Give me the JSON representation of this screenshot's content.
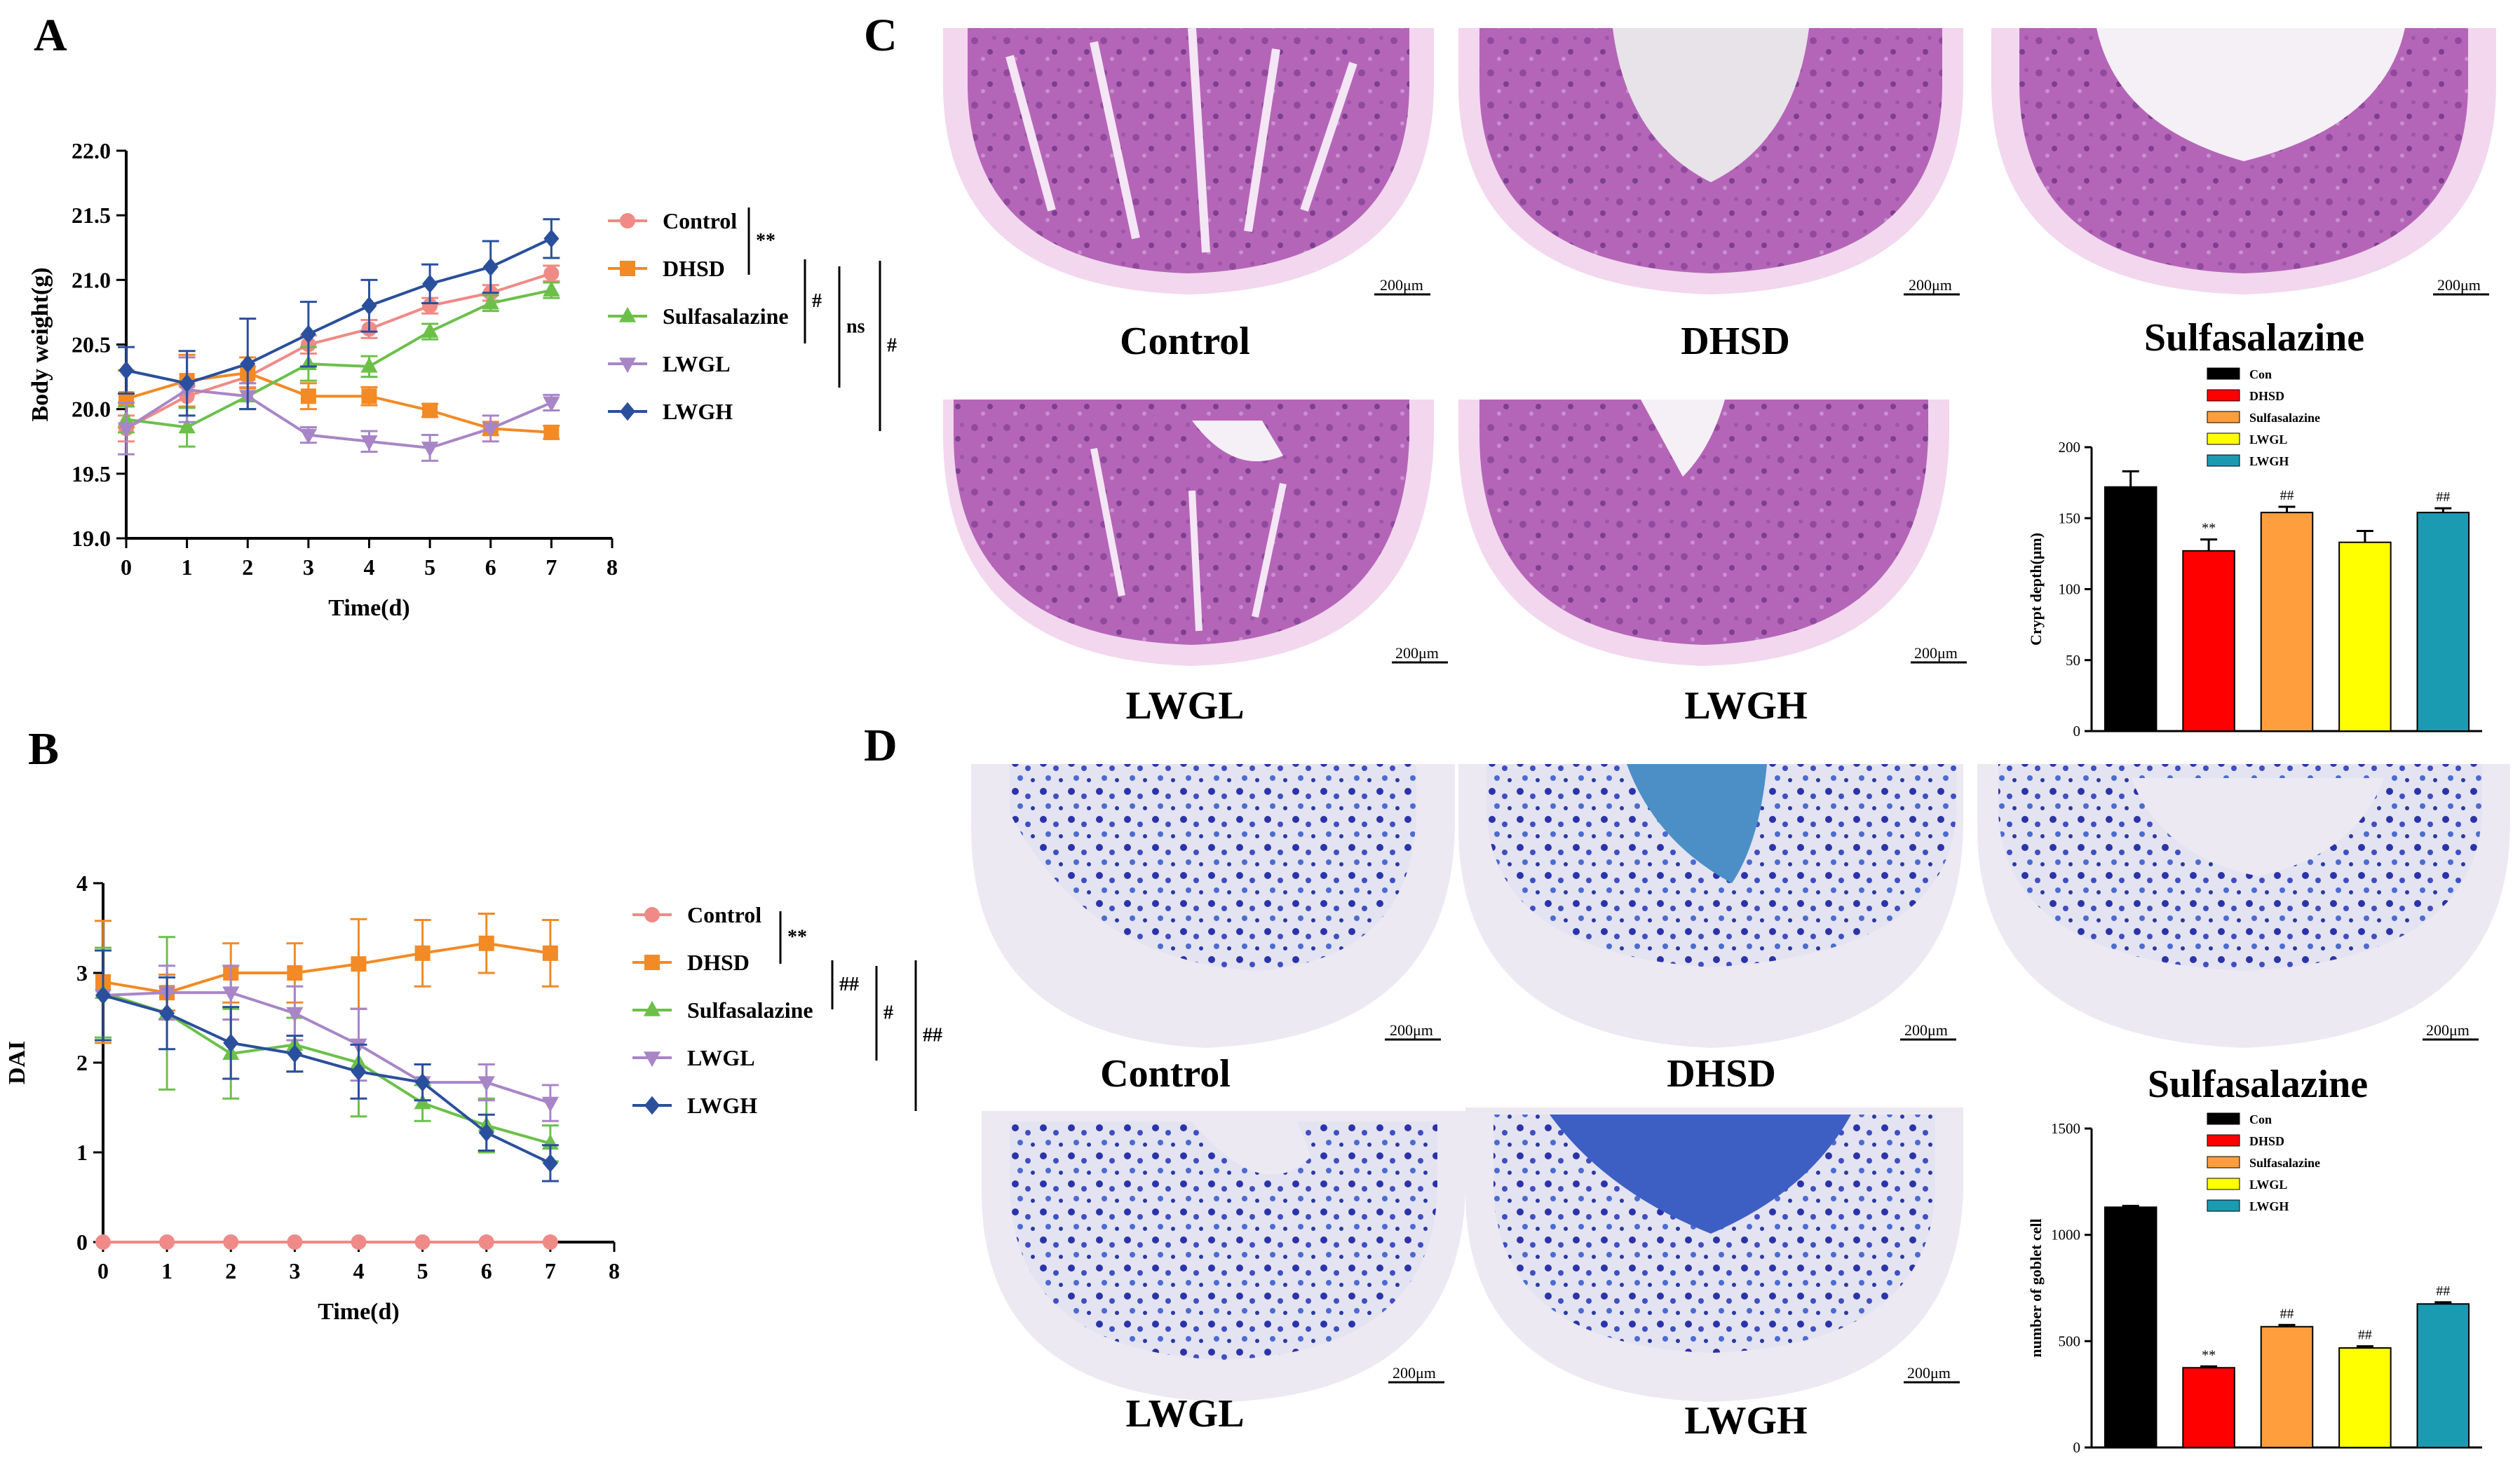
{
  "panels": {
    "A": {
      "letter": "A"
    },
    "B": {
      "letter": "B"
    },
    "C": {
      "letter": "C"
    },
    "D": {
      "letter": "D"
    }
  },
  "colors": {
    "control": "#ef8a86",
    "dhsd": "#f28a25",
    "sulfasalazine": "#6cc04a",
    "lwgl": "#a885c7",
    "lwgh": "#2a4f9c",
    "bar_con": "#000000",
    "bar_dhsd": "#ff0000",
    "bar_sulfa": "#ff9e3d",
    "bar_lwgl": "#ffff00",
    "bar_lwgh": "#1a9bb2",
    "he_tissue": "#b25bb5",
    "ab_tissue": "#3a5ac8"
  },
  "chart_data": [
    {
      "id": "A",
      "type": "line",
      "xlabel": "Time(d)",
      "ylabel": "Body weight(g)",
      "xlim": [
        0,
        8
      ],
      "ylim": [
        19.0,
        22.0
      ],
      "xticks": [
        "0",
        "1",
        "2",
        "3",
        "4",
        "5",
        "6",
        "7",
        "8"
      ],
      "yticks": [
        "19.0",
        "19.5",
        "20.0",
        "20.5",
        "21.0",
        "21.5",
        "22.0"
      ],
      "x": [
        0,
        1,
        2,
        3,
        4,
        5,
        6,
        7
      ],
      "series": [
        {
          "name": "Control",
          "marker": "circle",
          "values": [
            19.85,
            20.1,
            20.25,
            20.5,
            20.62,
            20.8,
            20.9,
            21.05
          ],
          "errors": [
            0.1,
            0.08,
            0.08,
            0.07,
            0.07,
            0.06,
            0.06,
            0.06
          ]
        },
        {
          "name": "DHSD",
          "marker": "square",
          "values": [
            20.08,
            20.22,
            20.28,
            20.1,
            20.1,
            19.99,
            19.85,
            19.82
          ],
          "errors": [
            0.22,
            0.2,
            0.12,
            0.1,
            0.07,
            0.05,
            0.05,
            0.05
          ]
        },
        {
          "name": "Sulfasalazine",
          "marker": "triangle-up",
          "values": [
            19.92,
            19.86,
            20.1,
            20.35,
            20.33,
            20.6,
            20.82,
            20.92
          ],
          "errors": [
            0.1,
            0.15,
            0.1,
            0.13,
            0.08,
            0.06,
            0.06,
            0.06
          ]
        },
        {
          "name": "LWGL",
          "marker": "triangle-down",
          "values": [
            19.85,
            20.15,
            20.1,
            19.8,
            19.75,
            19.7,
            19.85,
            20.05
          ],
          "errors": [
            0.2,
            0.25,
            0.1,
            0.06,
            0.08,
            0.1,
            0.1,
            0.06
          ]
        },
        {
          "name": "LWGH",
          "marker": "diamond",
          "values": [
            20.3,
            20.2,
            20.35,
            20.58,
            20.8,
            20.97,
            21.1,
            21.32
          ],
          "errors": [
            0.18,
            0.25,
            0.35,
            0.25,
            0.2,
            0.15,
            0.2,
            0.15
          ]
        }
      ],
      "significance": [
        "**",
        "#",
        "ns",
        "#"
      ]
    },
    {
      "id": "B",
      "type": "line",
      "xlabel": "Time(d)",
      "ylabel": "DAI",
      "xlim": [
        0,
        8
      ],
      "ylim": [
        0,
        4
      ],
      "xticks": [
        "0",
        "1",
        "2",
        "3",
        "4",
        "5",
        "6",
        "7",
        "8"
      ],
      "yticks": [
        "0",
        "1",
        "2",
        "3",
        "4"
      ],
      "x": [
        0,
        1,
        2,
        3,
        4,
        5,
        6,
        7
      ],
      "series": [
        {
          "name": "Control",
          "marker": "circle",
          "values": [
            0,
            0,
            0,
            0,
            0,
            0,
            0,
            0
          ],
          "errors": [
            0,
            0,
            0,
            0,
            0,
            0,
            0,
            0
          ]
        },
        {
          "name": "DHSD",
          "marker": "square",
          "values": [
            2.9,
            2.78,
            3.0,
            3.0,
            3.1,
            3.22,
            3.33,
            3.22
          ],
          "errors": [
            0.68,
            0.2,
            0.33,
            0.33,
            0.5,
            0.37,
            0.33,
            0.37
          ]
        },
        {
          "name": "Sulfasalazine",
          "marker": "triangle-up",
          "values": [
            2.78,
            2.55,
            2.1,
            2.2,
            2.0,
            1.55,
            1.3,
            1.1
          ],
          "errors": [
            0.5,
            0.85,
            0.5,
            0.3,
            0.6,
            0.2,
            0.3,
            0.2
          ]
        },
        {
          "name": "LWGL",
          "marker": "triangle-down",
          "values": [
            2.75,
            2.78,
            2.78,
            2.55,
            2.2,
            1.78,
            1.78,
            1.55
          ],
          "errors": [
            0.5,
            0.3,
            0.3,
            0.3,
            0.4,
            0.2,
            0.2,
            0.2
          ]
        },
        {
          "name": "LWGH",
          "marker": "diamond",
          "values": [
            2.75,
            2.55,
            2.22,
            2.1,
            1.9,
            1.78,
            1.22,
            0.88
          ],
          "errors": [
            0.5,
            0.4,
            0.4,
            0.2,
            0.3,
            0.2,
            0.2,
            0.2
          ]
        }
      ],
      "significance": [
        "**",
        "##",
        "#",
        "##"
      ]
    },
    {
      "id": "C-bar",
      "type": "bar",
      "ylabel": "Crypt depth(μm)",
      "ylim": [
        0,
        200
      ],
      "yticks": [
        "0",
        "50",
        "100",
        "150",
        "200"
      ],
      "categories": [
        "Con",
        "DHSD",
        "Sulfasalazine",
        "LWGL",
        "LWGH"
      ],
      "values": [
        172,
        127,
        154,
        133,
        154
      ],
      "errors": [
        11,
        8,
        4,
        8,
        3
      ],
      "annotations": [
        "",
        "**",
        "##",
        "",
        "##"
      ]
    },
    {
      "id": "D-bar",
      "type": "bar",
      "ylabel": "number of goblet cell",
      "ylim": [
        0,
        1500
      ],
      "yticks": [
        "0",
        "500",
        "1000",
        "1500"
      ],
      "categories": [
        "Con",
        "DHSD",
        "Sulfasalazine",
        "LWGL",
        "LWGH"
      ],
      "values": [
        1130,
        375,
        568,
        468,
        675
      ],
      "errors": [
        6,
        6,
        8,
        8,
        8
      ],
      "annotations": [
        "",
        "**",
        "##",
        "##",
        "##"
      ]
    }
  ],
  "histology": {
    "scale_bar": "200μm",
    "C_labels": [
      "Control",
      "DHSD",
      "Sulfasalazine",
      "LWGL",
      "LWGH"
    ],
    "D_labels": [
      "Control",
      "DHSD",
      "Sulfasalazine",
      "LWGL",
      "LWGH"
    ]
  }
}
